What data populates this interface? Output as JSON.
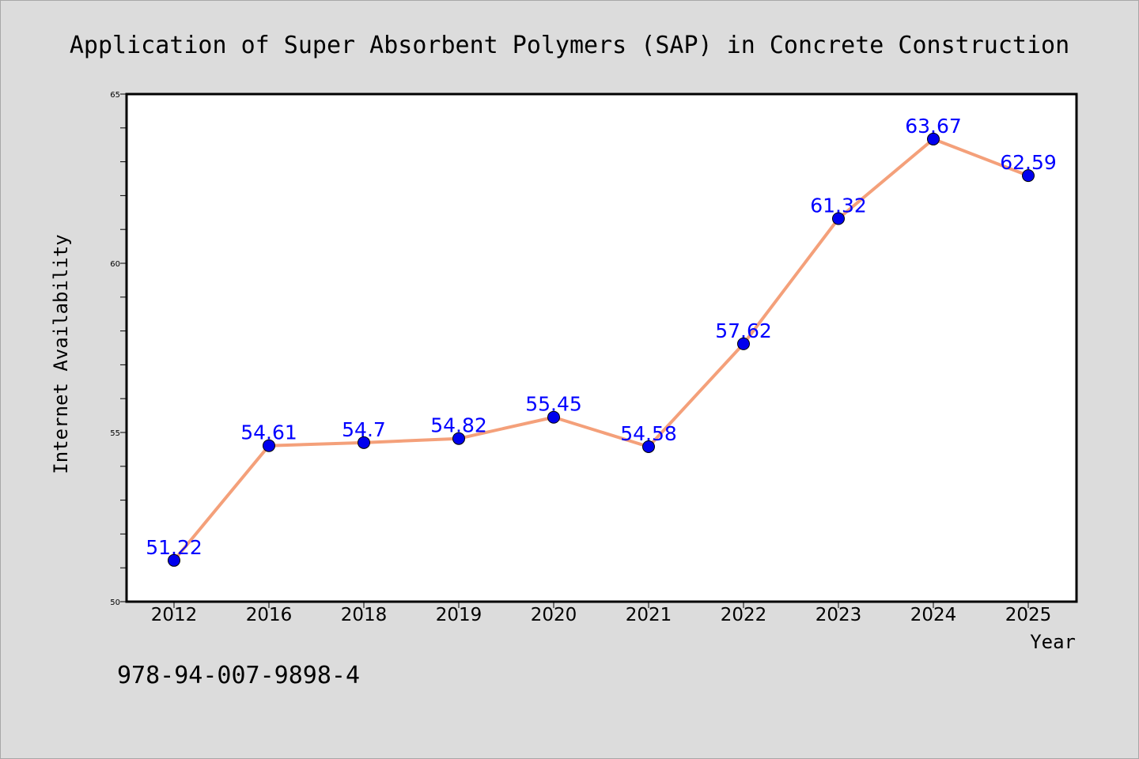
{
  "chart_data": {
    "type": "line",
    "title": "Application of Super Absorbent Polymers (SAP) in Concrete Construction",
    "xlabel": "Year",
    "ylabel": "Internet Availability",
    "categories": [
      "2012",
      "2016",
      "2018",
      "2019",
      "2020",
      "2021",
      "2022",
      "2023",
      "2024",
      "2025"
    ],
    "values": [
      51.22,
      54.61,
      54.7,
      54.82,
      55.45,
      54.58,
      57.62,
      61.32,
      63.67,
      62.59
    ],
    "data_labels": [
      "51.22",
      "54.61",
      "54.7",
      "54.82",
      "55.45",
      "54.58",
      "57.62",
      "61.32",
      "63.67",
      "62.59"
    ],
    "ylim": [
      50,
      65
    ],
    "yticks": [
      "50",
      "55",
      "60",
      "65"
    ],
    "grid": false,
    "legend": "none",
    "colors": {
      "line": "#f4a07a",
      "marker": "#0000ee",
      "labels": "#0000ff",
      "background": "#dcdcdc",
      "plot_area": "#ffffff"
    }
  },
  "footer": {
    "isbn": "978-94-007-9898-4"
  }
}
